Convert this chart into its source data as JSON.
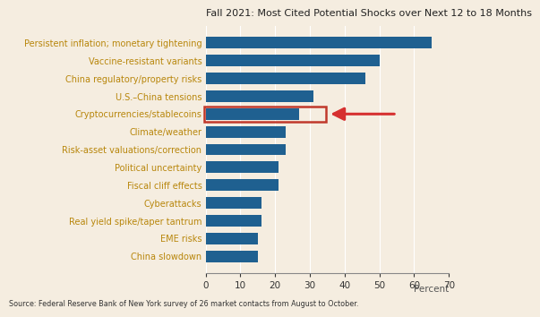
{
  "title": "Fall 2021: Most Cited Potential Shocks over Next 12 to 18 Months",
  "source": "Source: Federal Reserve Bank of New York survey of 26 market contacts from August to October.",
  "categories": [
    "Persistent inflation; monetary tightening",
    "Vaccine-resistant variants",
    "China regulatory/property risks",
    "U.S.–China tensions",
    "Cryptocurrencies/stablecoins",
    "Climate/weather",
    "Risk-asset valuations/correction",
    "Political uncertainty",
    "Fiscal cliff effects",
    "Cyberattacks",
    "Real yield spike/taper tantrum",
    "EME risks",
    "China slowdown"
  ],
  "values": [
    65,
    50,
    46,
    31,
    27,
    23,
    23,
    21,
    21,
    16,
    16,
    15,
    15
  ],
  "bar_color": "#1f6090",
  "highlight_index": 4,
  "highlight_box_color": "#c0392b",
  "arrow_color": "#d63030",
  "background_color": "#f5ede0",
  "xlabel": "Percent",
  "xlim": [
    0,
    70
  ],
  "xticks": [
    0,
    10,
    20,
    30,
    40,
    50,
    60,
    70
  ],
  "label_color": "#b8860b",
  "title_color": "#222222",
  "source_color": "#333333",
  "title_fontsize": 8.0,
  "label_fontsize": 7.0,
  "tick_fontsize": 7.5,
  "source_fontsize": 5.8
}
